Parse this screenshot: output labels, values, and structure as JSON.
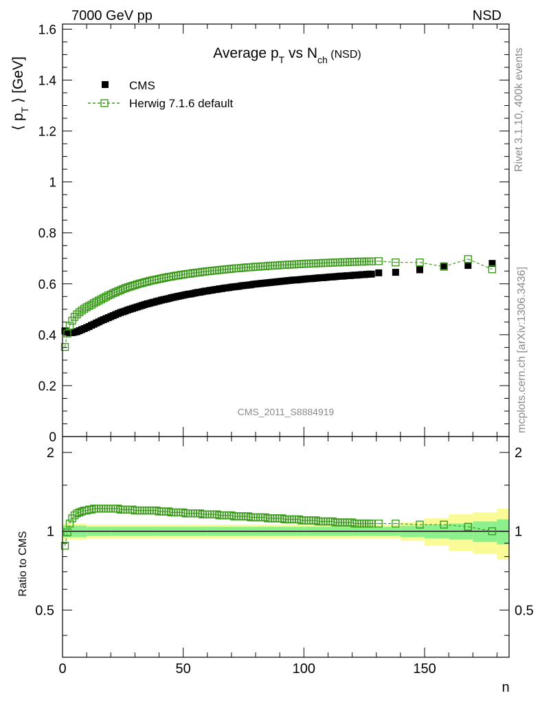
{
  "header": {
    "left": "7000 GeV pp",
    "right": "NSD"
  },
  "side_labels": {
    "rivet": "Rivet 3.1.10,  400k events",
    "mcplots": "mcplots.cern.ch [arXiv:1306.3436]"
  },
  "watermark": "CMS_2011_S8884919",
  "colors": {
    "data": "#000000",
    "mc": "#3a9a1a",
    "band_inner": "#8cf08c",
    "band_outer": "#fafa96"
  },
  "chart_data": [
    {
      "type": "scatter",
      "title_main": "Average p",
      "title_sub1": "T",
      "title_mid": " vs N",
      "title_sub2": "ch",
      "title_tail": " (NSD)",
      "ylabel_prefix": "⟨ p",
      "ylabel_sub": "T",
      "ylabel_suffix": " ⟩ [GeV]",
      "xlim": [
        0,
        185
      ],
      "ylim": [
        0,
        1.62
      ],
      "yticks": [
        "0",
        "0.2",
        "0.4",
        "0.6",
        "0.8",
        "1",
        "1.2",
        "1.4",
        "1.6"
      ],
      "ytick_values": [
        0,
        0.2,
        0.4,
        0.6,
        0.8,
        1.0,
        1.2,
        1.4,
        1.6
      ],
      "legend": {
        "position": "top-left",
        "data_label": "CMS",
        "mc_label": "Herwig 7.1.6 default"
      },
      "series": [
        {
          "name": "CMS",
          "x": [
            1,
            2,
            3,
            4,
            5,
            6,
            7,
            8,
            9,
            10,
            11,
            12,
            13,
            14,
            15,
            16,
            17,
            18,
            19,
            20,
            21,
            22,
            23,
            24,
            25,
            26,
            27,
            28,
            29,
            30,
            31,
            32,
            33,
            34,
            35,
            36,
            37,
            38,
            39,
            40,
            41,
            42,
            43,
            44,
            45,
            46,
            47,
            48,
            49,
            50,
            51,
            52,
            53,
            54,
            55,
            56,
            57,
            58,
            59,
            60,
            61,
            62,
            63,
            64,
            65,
            66,
            67,
            68,
            69,
            70,
            71,
            72,
            73,
            74,
            75,
            76,
            77,
            78,
            79,
            80,
            81,
            82,
            83,
            84,
            85,
            86,
            87,
            88,
            89,
            90,
            91,
            92,
            93,
            94,
            95,
            96,
            97,
            98,
            99,
            100,
            101,
            102,
            103,
            104,
            105,
            106,
            107,
            108,
            109,
            110,
            111,
            112,
            113,
            114,
            115,
            116,
            117,
            118,
            119,
            120,
            121,
            122,
            123,
            124,
            125,
            126,
            127,
            128,
            131,
            138,
            148,
            158,
            168,
            178
          ],
          "y": [
            0.415,
            0.41,
            0.408,
            0.408,
            0.41,
            0.412,
            0.416,
            0.42,
            0.424,
            0.428,
            0.432,
            0.437,
            0.441,
            0.446,
            0.45,
            0.455,
            0.459,
            0.463,
            0.467,
            0.471,
            0.475,
            0.479,
            0.483,
            0.487,
            0.49,
            0.493,
            0.497,
            0.5,
            0.503,
            0.506,
            0.509,
            0.512,
            0.515,
            0.518,
            0.521,
            0.523,
            0.526,
            0.528,
            0.531,
            0.533,
            0.536,
            0.538,
            0.54,
            0.542,
            0.545,
            0.547,
            0.549,
            0.551,
            0.553,
            0.555,
            0.557,
            0.559,
            0.56,
            0.562,
            0.564,
            0.566,
            0.567,
            0.569,
            0.571,
            0.572,
            0.574,
            0.575,
            0.577,
            0.578,
            0.58,
            0.581,
            0.583,
            0.584,
            0.585,
            0.587,
            0.588,
            0.589,
            0.59,
            0.592,
            0.593,
            0.594,
            0.595,
            0.596,
            0.598,
            0.599,
            0.6,
            0.601,
            0.602,
            0.603,
            0.604,
            0.605,
            0.606,
            0.607,
            0.608,
            0.609,
            0.61,
            0.611,
            0.612,
            0.613,
            0.614,
            0.615,
            0.615,
            0.616,
            0.617,
            0.618,
            0.619,
            0.62,
            0.62,
            0.621,
            0.622,
            0.623,
            0.624,
            0.624,
            0.625,
            0.626,
            0.627,
            0.627,
            0.628,
            0.629,
            0.63,
            0.63,
            0.631,
            0.632,
            0.632,
            0.633,
            0.634,
            0.634,
            0.635,
            0.636,
            0.636,
            0.637,
            0.638,
            0.638,
            0.643,
            0.645,
            0.655,
            0.67,
            0.672,
            0.68
          ]
        },
        {
          "name": "Herwig 7.1.6 default",
          "x": [
            1,
            2,
            3,
            4,
            5,
            6,
            7,
            8,
            9,
            10,
            11,
            12,
            13,
            14,
            15,
            16,
            17,
            18,
            19,
            20,
            21,
            22,
            23,
            24,
            25,
            26,
            27,
            28,
            29,
            30,
            31,
            32,
            33,
            34,
            35,
            36,
            37,
            38,
            39,
            40,
            41,
            42,
            43,
            44,
            45,
            46,
            47,
            48,
            49,
            50,
            51,
            52,
            53,
            54,
            55,
            56,
            57,
            58,
            59,
            60,
            61,
            62,
            63,
            64,
            65,
            66,
            67,
            68,
            69,
            70,
            71,
            72,
            73,
            74,
            75,
            76,
            77,
            78,
            79,
            80,
            81,
            82,
            83,
            84,
            85,
            86,
            87,
            88,
            89,
            90,
            91,
            92,
            93,
            94,
            95,
            96,
            97,
            98,
            99,
            100,
            101,
            102,
            103,
            104,
            105,
            106,
            107,
            108,
            109,
            110,
            111,
            112,
            113,
            114,
            115,
            116,
            117,
            118,
            119,
            120,
            121,
            122,
            123,
            124,
            125,
            126,
            127,
            128,
            131,
            138,
            148,
            158,
            168,
            178
          ],
          "y": [
            0.352,
            0.405,
            0.435,
            0.455,
            0.47,
            0.48,
            0.488,
            0.495,
            0.502,
            0.508,
            0.513,
            0.518,
            0.524,
            0.529,
            0.534,
            0.539,
            0.544,
            0.549,
            0.554,
            0.558,
            0.563,
            0.567,
            0.571,
            0.575,
            0.579,
            0.583,
            0.586,
            0.589,
            0.592,
            0.595,
            0.598,
            0.601,
            0.603,
            0.606,
            0.608,
            0.611,
            0.613,
            0.615,
            0.617,
            0.619,
            0.621,
            0.623,
            0.625,
            0.627,
            0.628,
            0.63,
            0.632,
            0.633,
            0.635,
            0.636,
            0.638,
            0.639,
            0.64,
            0.642,
            0.643,
            0.644,
            0.645,
            0.647,
            0.648,
            0.649,
            0.65,
            0.651,
            0.652,
            0.653,
            0.654,
            0.655,
            0.656,
            0.657,
            0.658,
            0.659,
            0.66,
            0.661,
            0.661,
            0.662,
            0.663,
            0.664,
            0.665,
            0.665,
            0.666,
            0.667,
            0.667,
            0.668,
            0.669,
            0.669,
            0.67,
            0.671,
            0.671,
            0.672,
            0.672,
            0.673,
            0.674,
            0.674,
            0.675,
            0.675,
            0.676,
            0.676,
            0.677,
            0.677,
            0.678,
            0.678,
            0.679,
            0.679,
            0.68,
            0.68,
            0.68,
            0.681,
            0.681,
            0.682,
            0.682,
            0.682,
            0.683,
            0.683,
            0.684,
            0.684,
            0.684,
            0.685,
            0.685,
            0.685,
            0.686,
            0.686,
            0.686,
            0.687,
            0.687,
            0.687,
            0.687,
            0.688,
            0.688,
            0.688,
            0.689,
            0.684,
            0.684,
            0.667,
            0.697,
            0.657
          ]
        }
      ]
    },
    {
      "type": "scatter",
      "ylabel": "Ratio to CMS",
      "xlabel": "n",
      "xlim": [
        0,
        185
      ],
      "ylim": [
        0.33,
        2.3
      ],
      "yticks": [
        "0.5",
        "1",
        "2"
      ],
      "ytick_values": [
        0.5,
        1.0,
        2.0
      ],
      "xticks": [
        "0",
        "50",
        "100",
        "150"
      ],
      "xtick_values": [
        0,
        50,
        100,
        150
      ],
      "ratio_y": [
        0.88,
        0.99,
        1.07,
        1.12,
        1.15,
        1.17,
        1.18,
        1.19,
        1.2,
        1.2,
        1.21,
        1.21,
        1.22,
        1.22,
        1.22,
        1.22,
        1.22,
        1.22,
        1.22,
        1.22,
        1.22,
        1.22,
        1.22,
        1.21,
        1.21,
        1.21,
        1.21,
        1.21,
        1.21,
        1.2,
        1.2,
        1.2,
        1.2,
        1.2,
        1.2,
        1.2,
        1.2,
        1.2,
        1.2,
        1.19,
        1.19,
        1.19,
        1.19,
        1.19,
        1.18,
        1.18,
        1.18,
        1.18,
        1.18,
        1.18,
        1.17,
        1.17,
        1.17,
        1.17,
        1.17,
        1.17,
        1.17,
        1.16,
        1.16,
        1.16,
        1.16,
        1.16,
        1.16,
        1.16,
        1.15,
        1.15,
        1.15,
        1.15,
        1.15,
        1.15,
        1.14,
        1.14,
        1.14,
        1.14,
        1.14,
        1.14,
        1.14,
        1.13,
        1.13,
        1.13,
        1.13,
        1.13,
        1.13,
        1.13,
        1.12,
        1.12,
        1.12,
        1.12,
        1.12,
        1.12,
        1.12,
        1.11,
        1.11,
        1.11,
        1.11,
        1.11,
        1.11,
        1.11,
        1.1,
        1.1,
        1.1,
        1.1,
        1.1,
        1.1,
        1.1,
        1.09,
        1.09,
        1.09,
        1.09,
        1.09,
        1.09,
        1.09,
        1.08,
        1.08,
        1.08,
        1.08,
        1.08,
        1.08,
        1.08,
        1.08,
        1.07,
        1.07,
        1.07,
        1.07,
        1.07,
        1.07,
        1.07,
        1.07,
        1.07,
        1.07,
        1.06,
        1.06,
        1.04,
        1.0,
        1.04,
        0.97
      ],
      "band_edges": [
        0,
        5,
        10,
        20,
        40,
        60,
        80,
        100,
        120,
        140,
        150,
        160,
        170,
        180,
        186
      ],
      "band_inner": [
        0.05,
        0.05,
        0.04,
        0.04,
        0.04,
        0.04,
        0.04,
        0.04,
        0.04,
        0.05,
        0.06,
        0.07,
        0.09,
        0.11
      ],
      "band_outer": [
        0.07,
        0.07,
        0.06,
        0.06,
        0.06,
        0.06,
        0.06,
        0.06,
        0.06,
        0.08,
        0.12,
        0.16,
        0.18,
        0.22
      ]
    }
  ]
}
